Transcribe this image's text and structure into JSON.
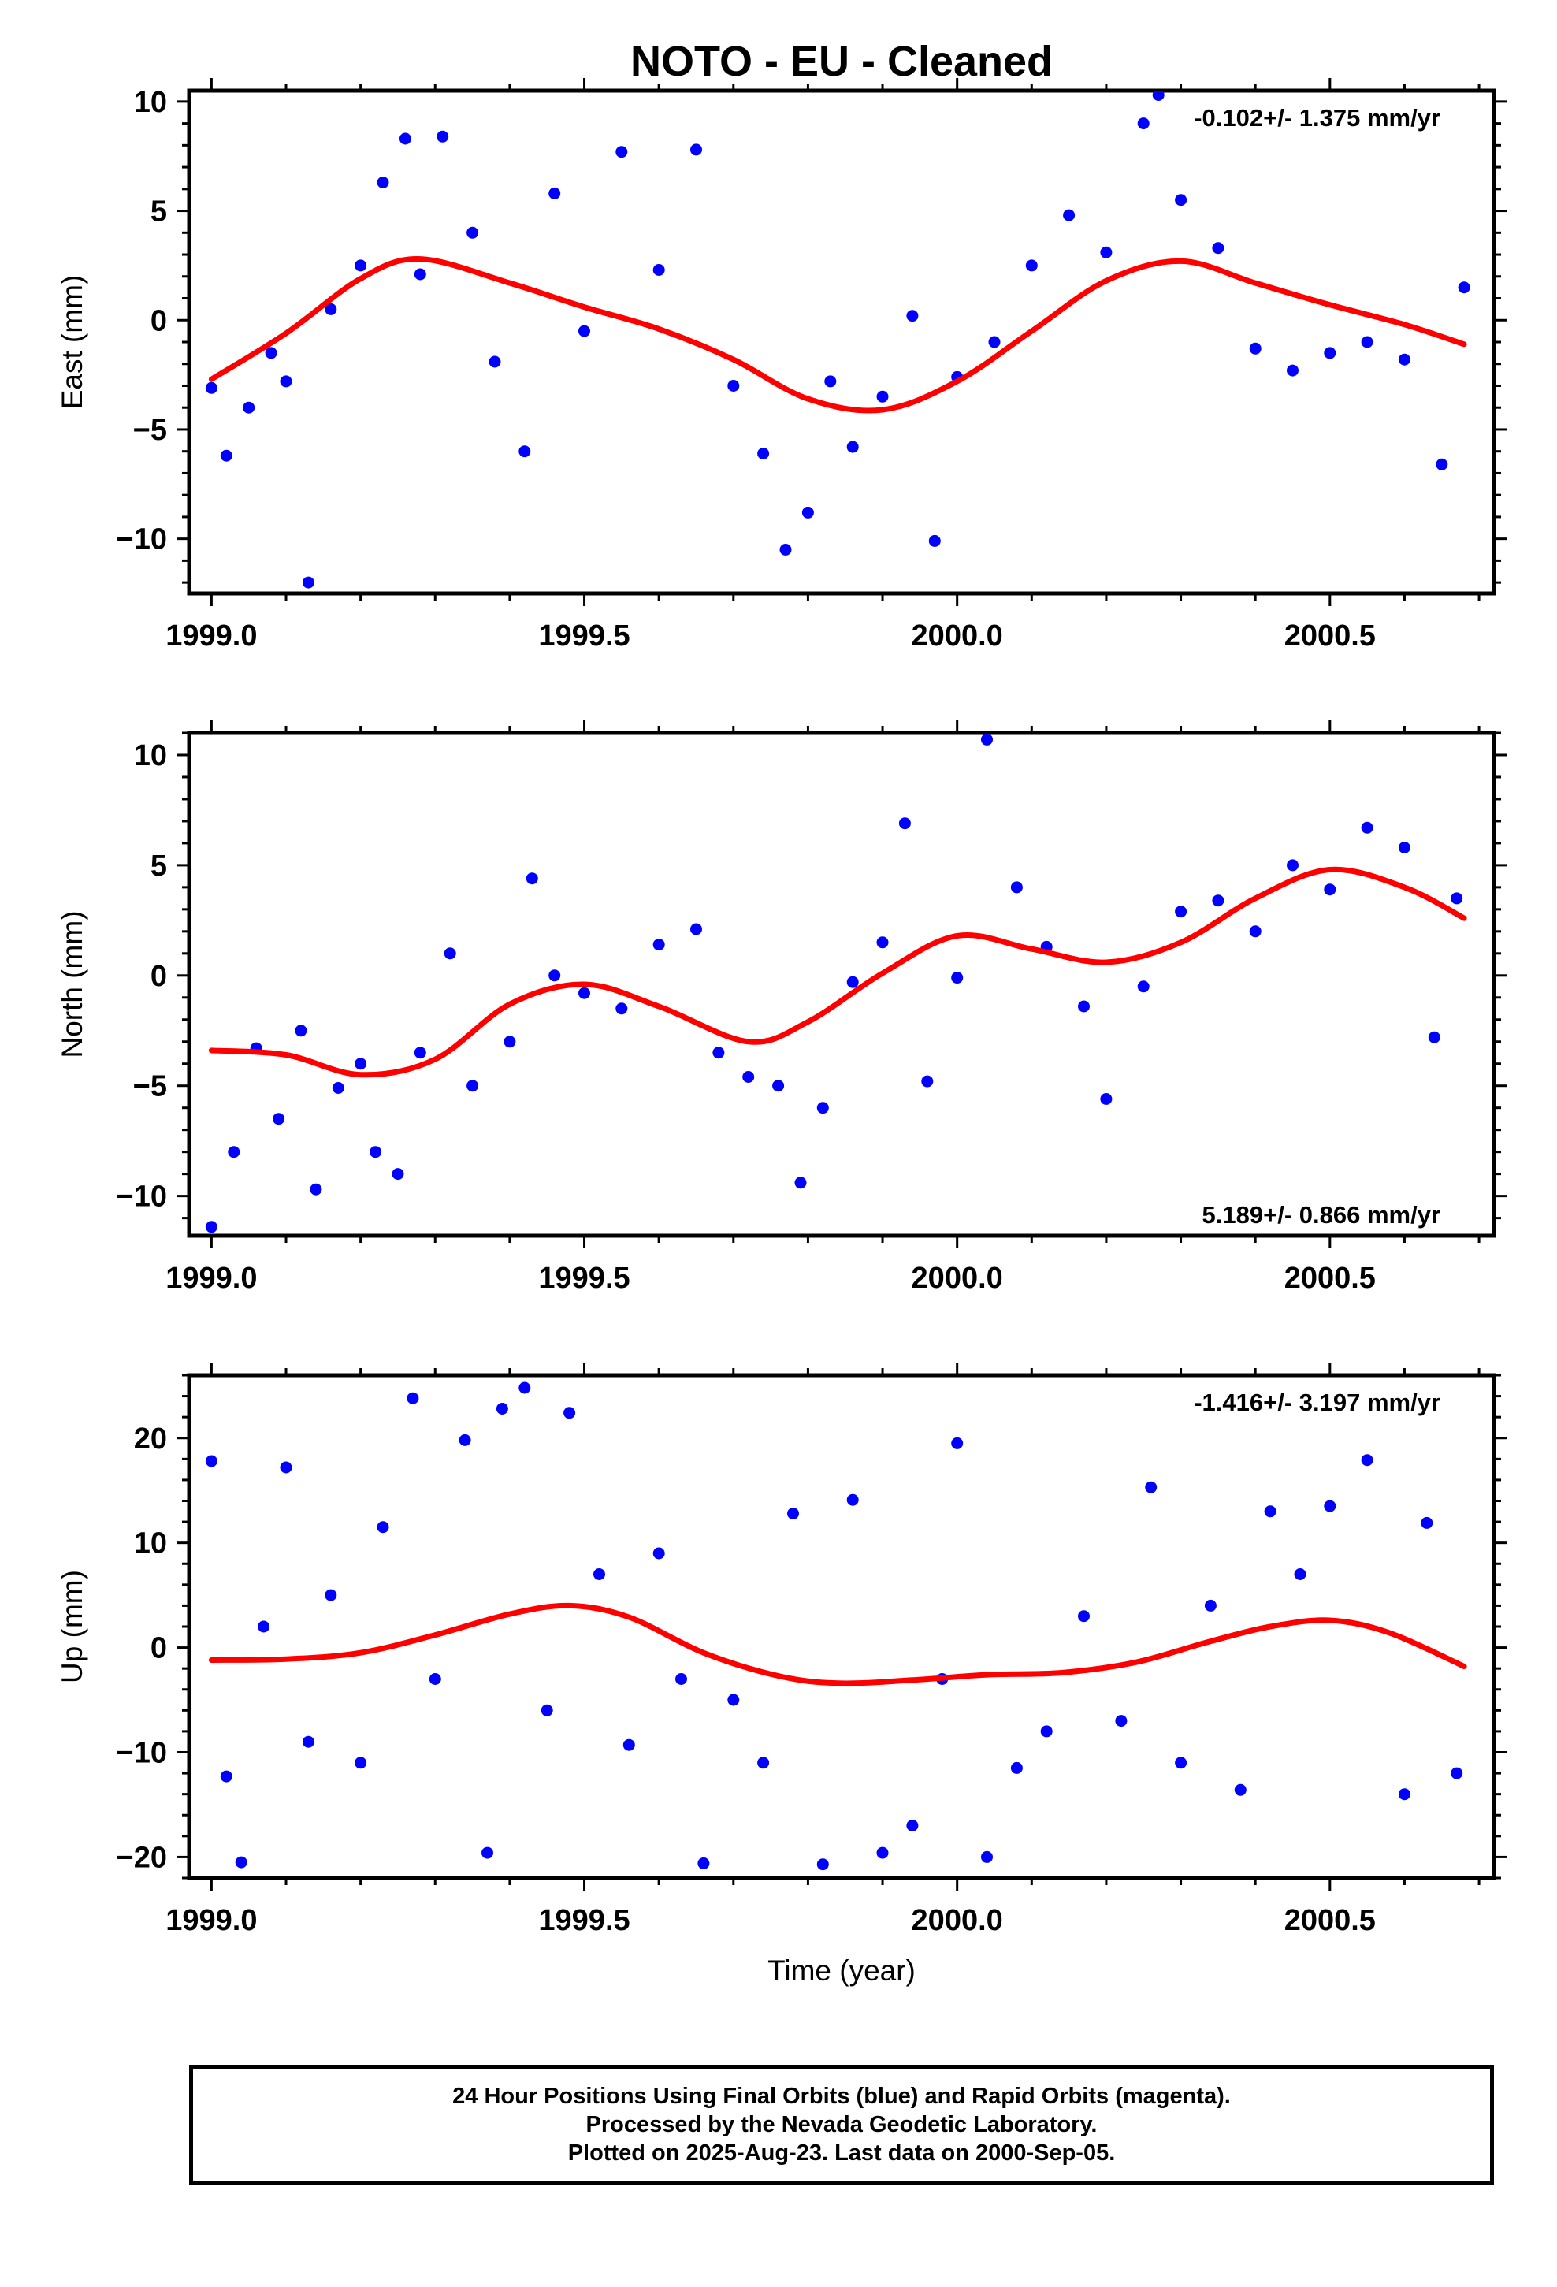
{
  "title": "NOTO  - EU - Cleaned",
  "xlabel": "Time (year)",
  "footer": {
    "line1": "24 Hour Positions Using Final Orbits (blue) and Rapid Orbits (magenta).",
    "line2": "Processed by the Nevada Geodetic Laboratory.",
    "line3": "Plotted on 2025-Aug-23. Last data on 2000-Sep-05."
  },
  "colors": {
    "points": "#0000ff",
    "fit": "#ff0000",
    "axes": "#000000"
  },
  "chart_data": [
    {
      "type": "scatter",
      "name": "east",
      "ylabel": "East (mm)",
      "rate_label": "-0.102+/- 1.375 mm/yr",
      "rate_position": "top-right",
      "xlim": [
        1998.97,
        2000.72
      ],
      "ylim": [
        -12.5,
        10.5
      ],
      "xticks": [
        1999.0,
        1999.5,
        2000.0,
        2000.5
      ],
      "xtick_labels": [
        "1999.0",
        "1999.5",
        "2000.0",
        "2000.5"
      ],
      "yticks": [
        -10,
        -5,
        0,
        5,
        10
      ],
      "ytick_labels": [
        "−10",
        "−5",
        "0",
        "5",
        "10"
      ],
      "series": [
        {
          "kind": "points",
          "x": [
            1999.0,
            1999.02,
            1999.05,
            1999.08,
            1999.1,
            1999.13,
            1999.16,
            1999.2,
            1999.23,
            1999.26,
            1999.28,
            1999.31,
            1999.35,
            1999.38,
            1999.42,
            1999.46,
            1999.5,
            1999.55,
            1999.6,
            1999.65,
            1999.7,
            1999.74,
            1999.77,
            1999.8,
            1999.83,
            1999.86,
            1999.9,
            1999.94,
            1999.97,
            2000.0,
            2000.05,
            2000.1,
            2000.15,
            2000.2,
            2000.25,
            2000.27,
            2000.3,
            2000.35,
            2000.4,
            2000.45,
            2000.5,
            2000.55,
            2000.6,
            2000.65,
            2000.68
          ],
          "y": [
            -3.1,
            -6.2,
            -4.0,
            -1.5,
            -2.8,
            -12.0,
            0.5,
            2.5,
            6.3,
            8.3,
            2.1,
            8.4,
            4.0,
            -1.9,
            -6.0,
            5.8,
            -0.5,
            7.7,
            2.3,
            7.8,
            -3.0,
            -6.1,
            -10.5,
            -8.8,
            -2.8,
            -5.8,
            -3.5,
            0.2,
            -10.1,
            -2.6,
            -1.0,
            2.5,
            4.8,
            3.1,
            9.0,
            10.3,
            5.5,
            3.3,
            -1.3,
            -2.3,
            -1.5,
            -1.0,
            -1.8,
            -6.6,
            1.5
          ]
        },
        {
          "kind": "fit",
          "x": [
            1999.0,
            1999.1,
            1999.2,
            1999.28,
            1999.4,
            1999.5,
            1999.6,
            1999.7,
            1999.8,
            1999.9,
            2000.0,
            2000.1,
            2000.2,
            2000.3,
            2000.4,
            2000.5,
            2000.6,
            2000.68
          ],
          "y": [
            -2.7,
            -0.6,
            1.9,
            2.8,
            1.7,
            0.6,
            -0.4,
            -1.8,
            -3.6,
            -4.1,
            -2.8,
            -0.5,
            1.8,
            2.7,
            1.7,
            0.7,
            -0.2,
            -1.1
          ]
        }
      ]
    },
    {
      "type": "scatter",
      "name": "north",
      "ylabel": "North (mm)",
      "rate_label": "5.189+/- 0.866 mm/yr",
      "rate_position": "bottom-right",
      "xlim": [
        1998.97,
        2000.72
      ],
      "ylim": [
        -11.8,
        11.0
      ],
      "xticks": [
        1999.0,
        1999.5,
        2000.0,
        2000.5
      ],
      "xtick_labels": [
        "1999.0",
        "1999.5",
        "2000.0",
        "2000.5"
      ],
      "yticks": [
        -10,
        -5,
        0,
        5,
        10
      ],
      "ytick_labels": [
        "−10",
        "−5",
        "0",
        "5",
        "10"
      ],
      "series": [
        {
          "kind": "points",
          "x": [
            1999.0,
            1999.03,
            1999.06,
            1999.09,
            1999.12,
            1999.14,
            1999.17,
            1999.2,
            1999.22,
            1999.25,
            1999.28,
            1999.32,
            1999.35,
            1999.4,
            1999.43,
            1999.46,
            1999.5,
            1999.55,
            1999.6,
            1999.65,
            1999.68,
            1999.72,
            1999.76,
            1999.79,
            1999.82,
            1999.86,
            1999.9,
            1999.93,
            1999.96,
            2000.0,
            2000.04,
            2000.08,
            2000.12,
            2000.17,
            2000.2,
            2000.25,
            2000.3,
            2000.35,
            2000.4,
            2000.45,
            2000.5,
            2000.55,
            2000.6,
            2000.64,
            2000.67
          ],
          "y": [
            -11.4,
            -8.0,
            -3.3,
            -6.5,
            -2.5,
            -9.7,
            -5.1,
            -4.0,
            -8.0,
            -9.0,
            -3.5,
            1.0,
            -5.0,
            -3.0,
            4.4,
            0.0,
            -0.8,
            -1.5,
            1.4,
            2.1,
            -3.5,
            -4.6,
            -5.0,
            -9.4,
            -6.0,
            -0.3,
            1.5,
            6.9,
            -4.8,
            -0.1,
            10.7,
            4.0,
            1.3,
            -1.4,
            -5.6,
            -0.5,
            2.9,
            3.4,
            2.0,
            5.0,
            3.9,
            6.7,
            5.8,
            -2.8,
            3.5
          ]
        },
        {
          "kind": "fit",
          "x": [
            1999.0,
            1999.1,
            1999.2,
            1999.3,
            1999.4,
            1999.5,
            1999.6,
            1999.72,
            1999.8,
            1999.9,
            2000.0,
            2000.1,
            2000.2,
            2000.3,
            2000.4,
            2000.5,
            2000.6,
            2000.68
          ],
          "y": [
            -3.4,
            -3.6,
            -4.5,
            -3.8,
            -1.3,
            -0.4,
            -1.4,
            -3.0,
            -2.1,
            0.1,
            1.8,
            1.2,
            0.6,
            1.5,
            3.5,
            4.8,
            4.0,
            2.6
          ]
        }
      ]
    },
    {
      "type": "scatter",
      "name": "up",
      "ylabel": "Up (mm)",
      "rate_label": "-1.416+/- 3.197 mm/yr",
      "rate_position": "top-right",
      "xlim": [
        1998.97,
        2000.72
      ],
      "ylim": [
        -22.0,
        26.0
      ],
      "xticks": [
        1999.0,
        1999.5,
        2000.0,
        2000.5
      ],
      "xtick_labels": [
        "1999.0",
        "1999.5",
        "2000.0",
        "2000.5"
      ],
      "yticks": [
        -20,
        -10,
        0,
        10,
        20
      ],
      "ytick_labels": [
        "−20",
        "−10",
        "0",
        "10",
        "20"
      ],
      "series": [
        {
          "kind": "points",
          "x": [
            1999.0,
            1999.02,
            1999.04,
            1999.07,
            1999.1,
            1999.13,
            1999.16,
            1999.2,
            1999.23,
            1999.27,
            1999.3,
            1999.34,
            1999.37,
            1999.39,
            1999.42,
            1999.45,
            1999.48,
            1999.52,
            1999.56,
            1999.6,
            1999.63,
            1999.66,
            1999.7,
            1999.74,
            1999.78,
            1999.82,
            1999.86,
            1999.9,
            1999.94,
            1999.98,
            2000.0,
            2000.04,
            2000.08,
            2000.12,
            2000.17,
            2000.22,
            2000.26,
            2000.3,
            2000.34,
            2000.38,
            2000.42,
            2000.46,
            2000.5,
            2000.55,
            2000.6,
            2000.63,
            2000.67
          ],
          "y": [
            17.8,
            -12.3,
            -20.5,
            2.0,
            17.2,
            -9.0,
            5.0,
            -11.0,
            11.5,
            23.8,
            -3.0,
            19.8,
            -19.6,
            22.8,
            24.8,
            -6.0,
            22.4,
            7.0,
            -9.3,
            9.0,
            -3.0,
            -20.6,
            -5.0,
            -11.0,
            12.8,
            -20.7,
            14.1,
            -19.6,
            -17.0,
            -3.0,
            19.5,
            -20.0,
            -11.5,
            -8.0,
            3.0,
            -7.0,
            15.3,
            -11.0,
            4.0,
            -13.6,
            13.0,
            7.0,
            13.5,
            17.9,
            -14.0,
            11.9,
            -12.0
          ]
        },
        {
          "kind": "fit",
          "x": [
            1999.0,
            1999.1,
            1999.2,
            1999.3,
            1999.4,
            1999.48,
            1999.56,
            1999.66,
            1999.76,
            1999.84,
            1999.94,
            2000.04,
            2000.14,
            2000.24,
            2000.34,
            2000.42,
            2000.5,
            2000.58,
            2000.68
          ],
          "y": [
            -1.2,
            -1.1,
            -0.5,
            1.2,
            3.2,
            4.0,
            2.9,
            -0.5,
            -2.7,
            -3.4,
            -3.1,
            -2.6,
            -2.4,
            -1.4,
            0.6,
            2.0,
            2.6,
            1.4,
            -1.8
          ]
        }
      ]
    }
  ]
}
